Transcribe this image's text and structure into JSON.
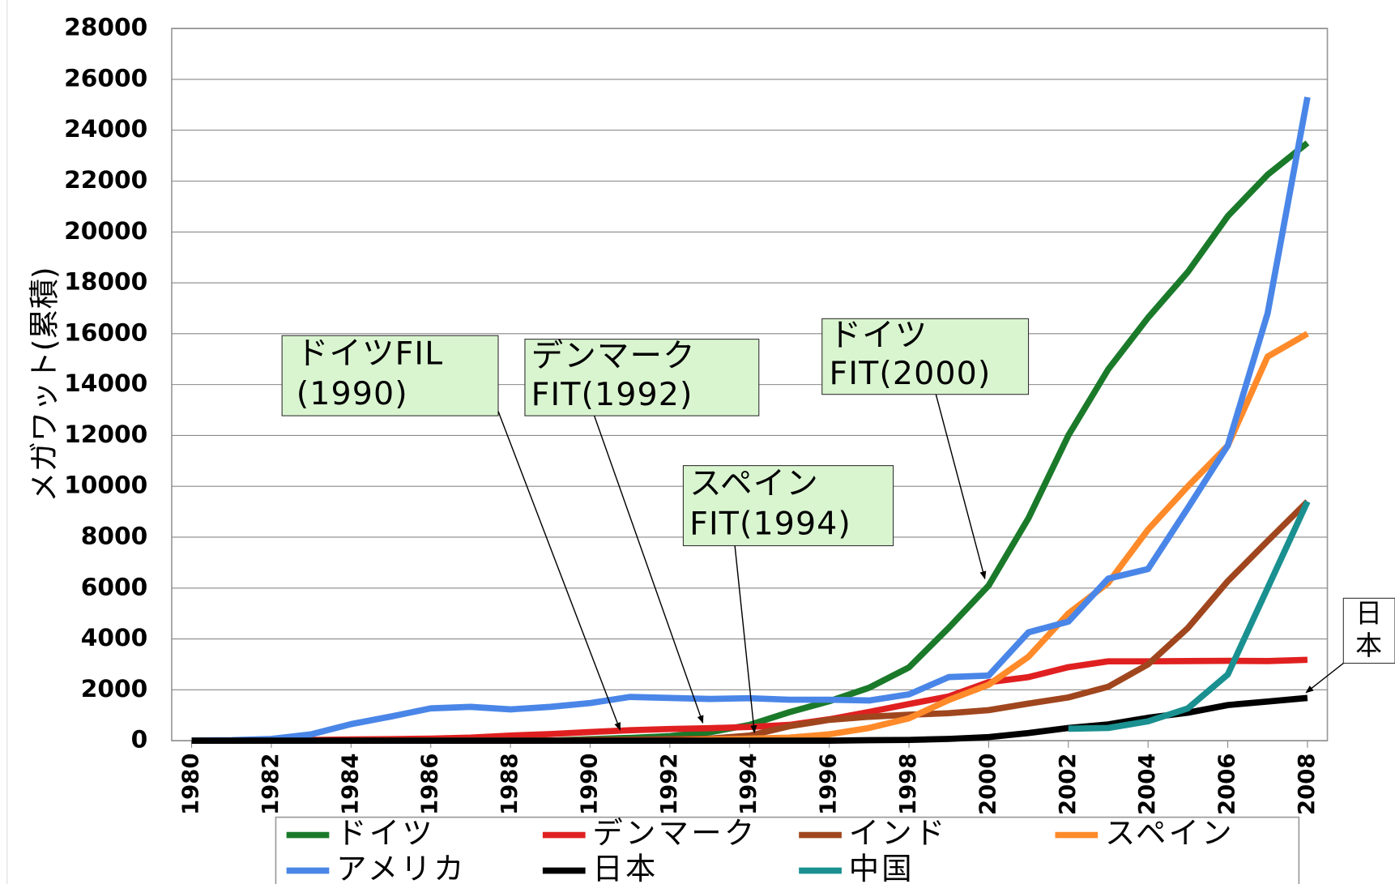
{
  "chart_data": {
    "type": "line",
    "y_label": "メガワット(累積)",
    "x": [
      1980,
      1981,
      1982,
      1983,
      1984,
      1985,
      1986,
      1987,
      1988,
      1989,
      1990,
      1991,
      1992,
      1993,
      1994,
      1995,
      1996,
      1997,
      1998,
      1999,
      2000,
      2001,
      2002,
      2003,
      2004,
      2005,
      2006,
      2007,
      2008
    ],
    "xlim": [
      1979.5,
      2008.5
    ],
    "xticks": [
      1980,
      1982,
      1984,
      1986,
      1988,
      1990,
      1992,
      1994,
      1996,
      1998,
      2000,
      2002,
      2004,
      2006,
      2008
    ],
    "ylim": [
      0,
      28000
    ],
    "yticks": [
      0,
      2000,
      4000,
      6000,
      8000,
      10000,
      12000,
      14000,
      16000,
      18000,
      20000,
      22000,
      24000,
      26000,
      28000
    ],
    "grid": true,
    "series": [
      {
        "name": "ドイツ",
        "color": "#1a7a2a",
        "values": [
          0,
          0,
          0,
          0,
          0,
          0,
          0,
          0,
          0,
          0,
          60,
          110,
          180,
          330,
          620,
          1120,
          1550,
          2080,
          2880,
          4440,
          6100,
          8750,
          12000,
          14600,
          16630,
          18430,
          20620,
          22250,
          23500
        ]
      },
      {
        "name": "デンマーク",
        "color": "#e02020",
        "values": [
          0,
          10,
          20,
          30,
          50,
          60,
          80,
          120,
          200,
          260,
          340,
          410,
          460,
          490,
          540,
          620,
          840,
          1130,
          1440,
          1740,
          2300,
          2500,
          2890,
          3120,
          3120,
          3130,
          3140,
          3130,
          3180
        ]
      },
      {
        "name": "インド",
        "color": "#a0461e",
        "values": [
          0,
          0,
          0,
          0,
          0,
          0,
          0,
          0,
          0,
          0,
          30,
          40,
          60,
          80,
          200,
          570,
          820,
          940,
          1020,
          1080,
          1200,
          1460,
          1700,
          2120,
          3000,
          4430,
          6270,
          7850,
          9400
        ]
      },
      {
        "name": "スペイン",
        "color": "#ff8a2a",
        "values": [
          0,
          0,
          0,
          0,
          0,
          0,
          0,
          0,
          0,
          0,
          0,
          0,
          0,
          50,
          80,
          120,
          250,
          500,
          880,
          1600,
          2200,
          3300,
          5000,
          6200,
          8300,
          10000,
          11600,
          15100,
          16000
        ]
      },
      {
        "name": "アメリカ",
        "color": "#4a86e8",
        "values": [
          10,
          20,
          70,
          250,
          650,
          950,
          1270,
          1330,
          1230,
          1330,
          1480,
          1720,
          1680,
          1640,
          1670,
          1610,
          1610,
          1580,
          1820,
          2500,
          2560,
          4260,
          4680,
          6370,
          6750,
          9150,
          11600,
          16800,
          25300
        ]
      },
      {
        "name": "日本",
        "color": "#000000",
        "values": [
          0,
          0,
          0,
          0,
          0,
          0,
          0,
          0,
          0,
          0,
          0,
          0,
          0,
          0,
          0,
          0,
          0,
          20,
          30,
          70,
          140,
          300,
          500,
          640,
          900,
          1100,
          1400,
          1540,
          1680
        ]
      },
      {
        "name": "中国",
        "color": "#1a9090",
        "values": [
          null,
          null,
          null,
          null,
          null,
          null,
          null,
          null,
          null,
          null,
          null,
          null,
          null,
          null,
          null,
          null,
          null,
          null,
          null,
          null,
          null,
          null,
          470,
          500,
          760,
          1270,
          2600,
          6000,
          9400
        ]
      }
    ],
    "annotations": [
      {
        "lines": [
          "ドイツFIL",
          "(1990)"
        ]
      },
      {
        "lines": [
          "デンマーク",
          "FIT(1992)"
        ]
      },
      {
        "lines": [
          "スペイン",
          "FIT(1994)"
        ]
      },
      {
        "lines": [
          "ドイツ",
          "FIT(2000)"
        ]
      },
      {
        "lines": [
          "日",
          "本"
        ]
      }
    ]
  }
}
